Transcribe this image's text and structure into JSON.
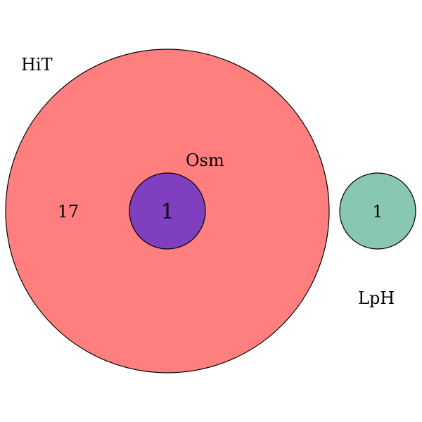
{
  "diagram": {
    "type": "venn-euler",
    "sets": [
      {
        "name": "HiT",
        "color": "#ff7f7f"
      },
      {
        "name": "Osm",
        "color": "#7f3fbf"
      },
      {
        "name": "LpH",
        "color": "#88c7b0"
      }
    ],
    "regions": [
      {
        "label": "HiT only",
        "count": "17"
      },
      {
        "label": "HiT ∩ Osm",
        "count": "1"
      },
      {
        "label": "LpH only",
        "count": "1"
      }
    ],
    "outline_color": "#000000"
  }
}
